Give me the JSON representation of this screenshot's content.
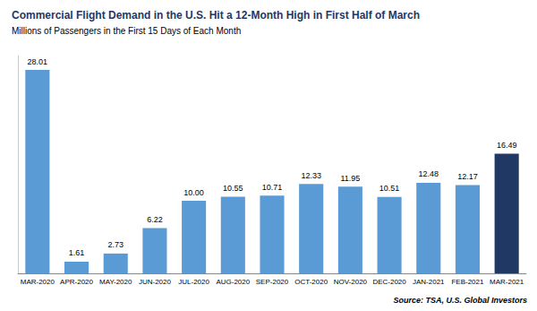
{
  "chart_data": {
    "type": "bar",
    "title": "Commercial Flight Demand in the U.S. Hit a 12-Month High in First Half of March",
    "subtitle": "Millions of Passengers in the First 15 Days of Each Month",
    "annotations": [
      "Source: TSA, U.S. Global Investors"
    ],
    "categories": [
      "MAR-2020",
      "APR-2020",
      "MAY-2020",
      "JUN-2020",
      "JUL-2020",
      "AUG-2020",
      "SEP-2020",
      "OCT-2020",
      "NOV-2020",
      "DEC-2020",
      "JAN-2021",
      "FEB-2021",
      "MAR-2021"
    ],
    "values": [
      28.01,
      1.61,
      2.73,
      6.22,
      10.0,
      10.55,
      10.71,
      12.33,
      11.95,
      10.51,
      12.48,
      12.17,
      16.49
    ],
    "value_labels": [
      "28.01",
      "1.61",
      "2.73",
      "6.22",
      "10.00",
      "10.55",
      "10.71",
      "12.33",
      "11.95",
      "10.51",
      "12.48",
      "12.17",
      "16.49"
    ],
    "colors": [
      "#5b9bd5",
      "#5b9bd5",
      "#5b9bd5",
      "#5b9bd5",
      "#5b9bd5",
      "#5b9bd5",
      "#5b9bd5",
      "#5b9bd5",
      "#5b9bd5",
      "#5b9bd5",
      "#5b9bd5",
      "#5b9bd5",
      "#1f3864"
    ],
    "title_color": "#1f3864",
    "ylim": [
      0,
      30
    ],
    "data_labels": true,
    "tick_labels": "x",
    "grid": false
  }
}
